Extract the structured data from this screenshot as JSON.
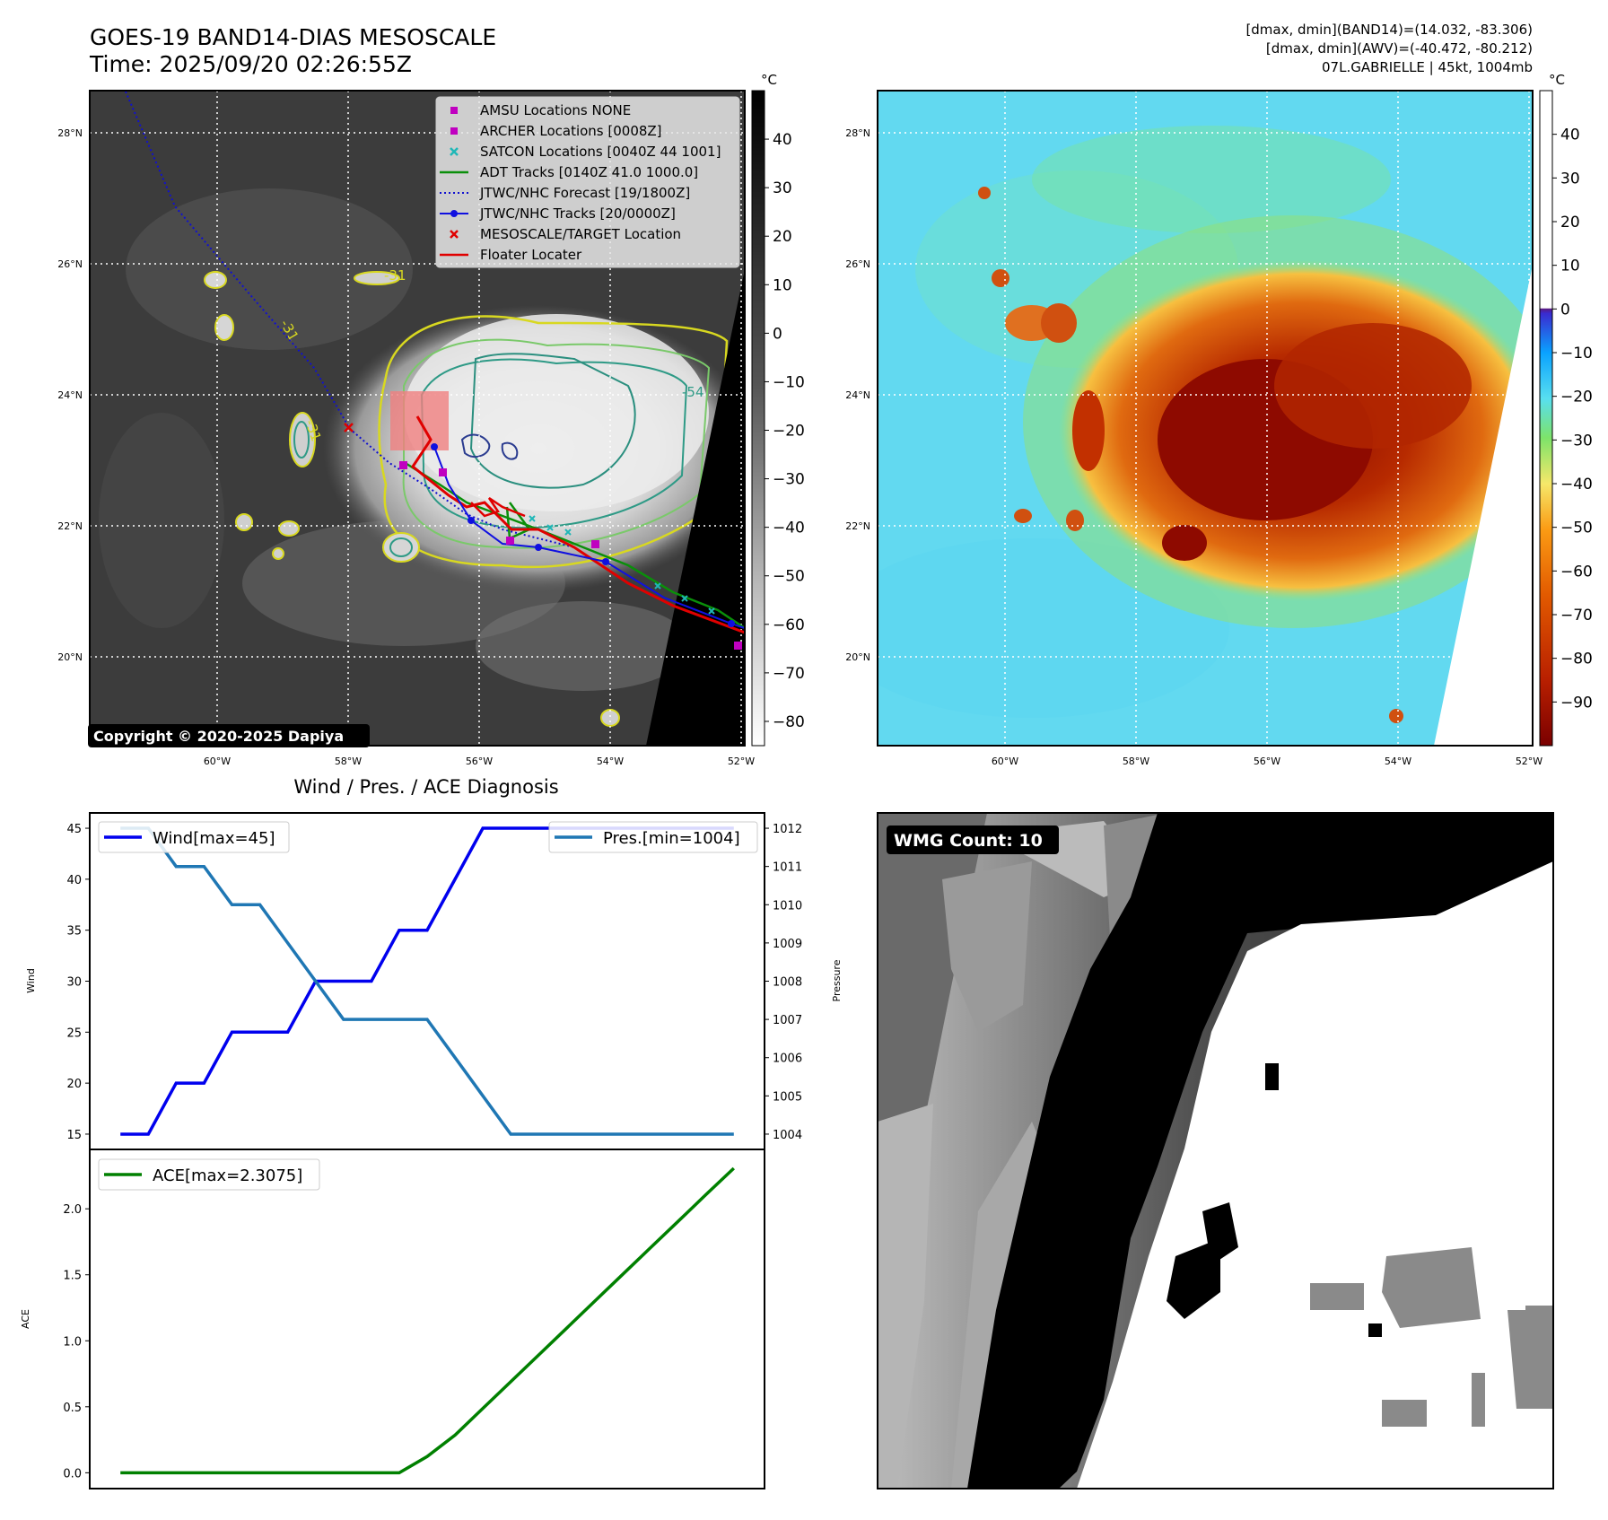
{
  "header": {
    "title_line1": "GOES-19 BAND14-DIAS MESOSCALE",
    "title_line2": "Time: 2025/09/20 02:26:55Z",
    "info_line1": "[dmax, dmin](BAND14)=(14.032, -83.306)",
    "info_line2": "[dmax, dmin](AWV)=(-40.472, -80.212)",
    "info_line3": "07L.GABRIELLE | 45kt, 1004mb"
  },
  "map_axes": {
    "lat_labels": [
      "28°N",
      "26°N",
      "24°N",
      "22°N",
      "20°N"
    ],
    "lon_labels": [
      "60°W",
      "58°W",
      "56°W",
      "54°W",
      "52°W"
    ],
    "lat_values": [
      28,
      26,
      24,
      22,
      20
    ],
    "lon_values": [
      -60,
      -58,
      -56,
      -54,
      -52
    ],
    "lat_range": [
      18.7,
      28.7
    ],
    "lon_range": [
      -61.9,
      -51.9
    ]
  },
  "ir_panel": {
    "copyright": "Copyright © 2020-2025 Dapiya",
    "contour_labels": [
      "-31",
      "-31",
      "-31",
      "-54"
    ],
    "colorbar": {
      "unit": "°C",
      "ticks": [
        "40",
        "30",
        "20",
        "10",
        "0",
        "−10",
        "−20",
        "−30",
        "−40",
        "−50",
        "−60",
        "−70",
        "−80"
      ],
      "tick_values": [
        40,
        30,
        20,
        10,
        0,
        -10,
        -20,
        -30,
        -40,
        -50,
        -60,
        -70,
        -80
      ],
      "range": [
        -85,
        50
      ]
    },
    "legend": [
      {
        "label": "AMSU Locations NONE",
        "marker": "square",
        "color": "#c000c0"
      },
      {
        "label": "ARCHER Locations [0008Z]",
        "marker": "square",
        "color": "#c000c0"
      },
      {
        "label": "SATCON Locations [0040Z 44 1001]",
        "marker": "x",
        "color": "#1fb7b7"
      },
      {
        "label": "ADT Tracks [0140Z 41.0 1000.0]",
        "marker": "line",
        "color": "#0a8f0a"
      },
      {
        "label": "JTWC/NHC Forecast [19/1800Z]",
        "marker": "dotted",
        "color": "#1010d0"
      },
      {
        "label": "JTWC/NHC Tracks [20/0000Z]",
        "marker": "dotline",
        "color": "#1010e0"
      },
      {
        "label": "MESOSCALE/TARGET Location",
        "marker": "x",
        "color": "#e00000"
      },
      {
        "label": "Floater Locater",
        "marker": "line",
        "color": "#e00000"
      }
    ]
  },
  "wv_panel": {
    "colorbar": {
      "unit": "°C",
      "ticks": [
        "40",
        "30",
        "20",
        "10",
        "0",
        "−10",
        "−20",
        "−30",
        "−40",
        "−50",
        "−60",
        "−70",
        "−80",
        "−90"
      ],
      "tick_values": [
        40,
        30,
        20,
        10,
        0,
        -10,
        -20,
        -30,
        -40,
        -50,
        -60,
        -70,
        -80,
        -90
      ],
      "range": [
        -100,
        50
      ]
    }
  },
  "diagnosis": {
    "title": "Wind / Pres. / ACE Diagnosis",
    "wind_ylabel": "Wind",
    "pres_ylabel": "Pressure",
    "ace_ylabel": "ACE",
    "legend_wind": "Wind[max=45]",
    "legend_pres": "Pres.[min=1004]",
    "legend_ace": "ACE[max=2.3075]",
    "colors": {
      "wind": "#0000ee",
      "pres": "#1f77b4",
      "ace": "#008000"
    }
  },
  "wmg_panel": {
    "label": "WMG Count: 10"
  },
  "chart_data": [
    {
      "type": "line",
      "title": "Wind / Pres. / ACE Diagnosis",
      "x": [
        0,
        1,
        2,
        3,
        4,
        5,
        6,
        7,
        8,
        9,
        10,
        11,
        12,
        13,
        14,
        15,
        16,
        17,
        18,
        19,
        20,
        21,
        22
      ],
      "xlim": [
        -1.1,
        23.1
      ],
      "series": [
        {
          "name": "Wind[max=45]",
          "axis": "left",
          "values": [
            15,
            15,
            20,
            20,
            25,
            25,
            25,
            30,
            30,
            30,
            35,
            35,
            40,
            45,
            45,
            45,
            45,
            45,
            45,
            45,
            45,
            45,
            45
          ]
        },
        {
          "name": "Pres.[min=1004]",
          "axis": "right",
          "values": [
            1012,
            1012,
            1011,
            1011,
            1010,
            1010,
            1009,
            1008,
            1007,
            1007,
            1007,
            1007,
            1006,
            1005,
            1004,
            1004,
            1004,
            1004,
            1004,
            1004,
            1004,
            1004,
            1004
          ]
        }
      ],
      "ylabel": "Wind",
      "ylim": [
        13.5,
        46.5
      ],
      "yticks": [
        15,
        20,
        25,
        30,
        35,
        40,
        45
      ],
      "y2label": "Pressure",
      "y2lim": [
        1003.6,
        1012.4
      ],
      "y2ticks": [
        1004,
        1005,
        1006,
        1007,
        1008,
        1009,
        1010,
        1011,
        1012
      ]
    },
    {
      "type": "line",
      "x": [
        0,
        1,
        2,
        3,
        4,
        5,
        6,
        7,
        8,
        9,
        10,
        11,
        12,
        13,
        14,
        15,
        16,
        17,
        18,
        19,
        20,
        21,
        22
      ],
      "xlim": [
        -1.1,
        23.1
      ],
      "series": [
        {
          "name": "ACE[max=2.3075]",
          "values": [
            0,
            0,
            0,
            0,
            0,
            0,
            0,
            0,
            0,
            0,
            0,
            0.1225,
            0.285,
            0.4875,
            0.69,
            0.8925,
            1.095,
            1.2975,
            1.5,
            1.7025,
            1.905,
            2.1075,
            2.3075
          ]
        }
      ],
      "ylabel": "ACE",
      "ylim": [
        -0.12,
        2.45
      ],
      "yticks": [
        0.0,
        0.5,
        1.0,
        1.5,
        2.0
      ]
    }
  ]
}
